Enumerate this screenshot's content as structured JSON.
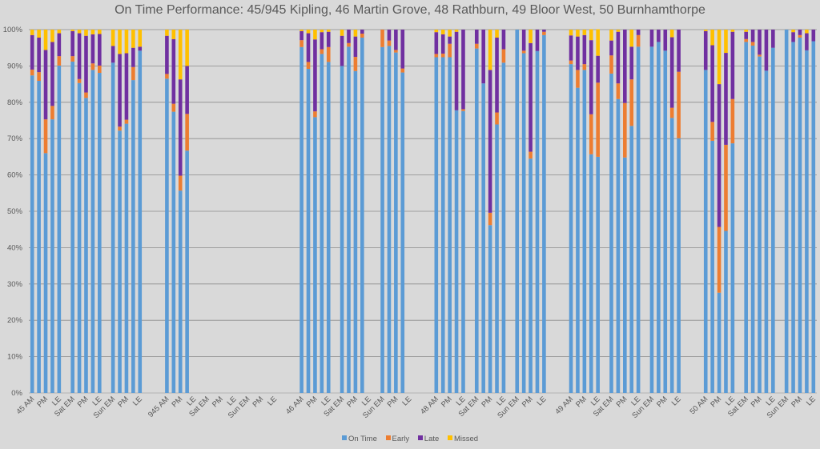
{
  "chart_data": {
    "type": "bar",
    "stacked": true,
    "title": "On Time Performance: 45/945 Kipling, 46 Martin Grove, 48 Rathburn, 49 Bloor West, 50 Burnhamthorpe",
    "xlabel": "",
    "ylabel": "",
    "ylim": [
      0,
      100
    ],
    "yticks": [
      "0%",
      "10%",
      "20%",
      "30%",
      "40%",
      "50%",
      "60%",
      "70%",
      "80%",
      "90%",
      "100%"
    ],
    "grid": true,
    "legend_position": "bottom",
    "series_names": [
      "On Time",
      "Early",
      "Late",
      "Missed"
    ],
    "colors": {
      "On Time": "#5b9bd5",
      "Early": "#ed7d31",
      "Late": "#7030a0",
      "Missed": "#ffc000"
    },
    "routes": [
      {
        "name": "45",
        "groups": [
          {
            "labels": [
              "45 AM",
              "PM",
              "LE"
            ],
            "bars": [
              [
                87.4,
                1.6,
                9.5,
                1.5
              ],
              [
                85.9,
                2.4,
                9.5,
                2.2
              ],
              [
                66.0,
                9.3,
                19.1,
                5.6
              ],
              [
                75.3,
                3.7,
                17.6,
                3.4
              ],
              [
                90.1,
                2.6,
                6.3,
                1.0
              ]
            ]
          },
          {
            "labels": [
              "Sat EM",
              "PM",
              "LE"
            ],
            "bars": [
              [
                91.2,
                1.5,
                6.9,
                0.4
              ],
              [
                85.3,
                1.1,
                12.6,
                1.0
              ],
              [
                81.2,
                1.5,
                15.6,
                1.7
              ],
              [
                88.9,
                1.8,
                8.0,
                1.3
              ],
              [
                88.1,
                2.0,
                8.7,
                1.2
              ]
            ]
          },
          {
            "labels": [
              "Sun EM",
              "PM",
              "LE"
            ],
            "bars": [
              [
                90.9,
                0,
                4.6,
                4.5
              ],
              [
                72.2,
                1.1,
                20.0,
                6.7
              ],
              [
                74.1,
                1.1,
                18.3,
                6.5
              ],
              [
                86.1,
                3.6,
                5.3,
                5.0
              ],
              [
                94.2,
                0,
                1.1,
                4.7
              ]
            ]
          }
        ]
      },
      {
        "name": "945",
        "groups": [
          {
            "labels": [
              "945 AM",
              "PM",
              "LE"
            ],
            "bars": [
              [
                86.5,
                1.3,
                10.5,
                1.7
              ],
              [
                77.4,
                2.2,
                17.8,
                2.6
              ],
              [
                55.7,
                4.1,
                26.5,
                13.7
              ],
              [
                66.7,
                10.1,
                13.2,
                10.0
              ]
            ]
          },
          {
            "labels": [
              "Sat EM",
              "PM",
              "LE"
            ],
            "bars": []
          },
          {
            "labels": [
              "Sun EM",
              "PM",
              "LE"
            ],
            "bars": []
          }
        ]
      },
      {
        "name": "46",
        "groups": [
          {
            "labels": [
              "46 AM",
              "PM",
              "LE"
            ],
            "bars": [
              [
                95.2,
                1.9,
                2.5,
                0.4
              ],
              [
                89.2,
                1.9,
                7.9,
                1.0
              ],
              [
                75.9,
                1.6,
                19.8,
                2.7
              ],
              [
                93.3,
                1.3,
                4.7,
                0.7
              ],
              [
                91.1,
                4.1,
                4.2,
                0.6
              ]
            ]
          },
          {
            "labels": [
              "Sat EM",
              "PM",
              "LE"
            ],
            "bars": [
              [
                90.0,
                0,
                8.3,
                1.7
              ],
              [
                95.3,
                1.0,
                3.7,
                0
              ],
              [
                88.6,
                3.9,
                5.6,
                1.9
              ],
              [
                97.8,
                1.1,
                1.1,
                0
              ]
            ]
          },
          {
            "labels": [
              "Sun EM",
              "PM",
              "LE"
            ],
            "bars": [
              [
                95.2,
                4.8,
                0,
                0
              ],
              [
                95.5,
                1.5,
                3.0,
                0
              ],
              [
                93.7,
                0.7,
                5.6,
                0
              ],
              [
                88.2,
                1.1,
                10.7,
                0
              ]
            ]
          }
        ]
      },
      {
        "name": "48",
        "groups": [
          {
            "labels": [
              "48 AM",
              "PM",
              "LE"
            ],
            "bars": [
              [
                92.4,
                0.9,
                6.0,
                0.7
              ],
              [
                92.4,
                1.0,
                5.3,
                1.3
              ],
              [
                92.4,
                3.7,
                2.0,
                1.9
              ],
              [
                77.8,
                0,
                21.6,
                0.6
              ],
              [
                77.6,
                0.5,
                21.9,
                0
              ]
            ]
          },
          {
            "labels": [
              "Sat EM",
              "PM",
              "LE"
            ],
            "bars": [
              [
                94.8,
                1.3,
                3.9,
                0
              ],
              [
                85.2,
                0,
                14.8,
                0
              ],
              [
                46.2,
                3.4,
                39.3,
                11.1
              ],
              [
                73.9,
                3.3,
                20.6,
                2.2
              ],
              [
                90.9,
                3.7,
                5.4,
                0
              ]
            ]
          },
          {
            "labels": [
              "Sun EM",
              "PM",
              "LE"
            ],
            "bars": [
              [
                100,
                0,
                0,
                0
              ],
              [
                93.5,
                0.7,
                5.8,
                0
              ],
              [
                64.5,
                1.9,
                29.9,
                3.7
              ],
              [
                94.1,
                0,
                5.9,
                0
              ],
              [
                98.5,
                0.9,
                0.6,
                0
              ]
            ]
          }
        ]
      },
      {
        "name": "49",
        "groups": [
          {
            "labels": [
              "49 AM",
              "PM",
              "LE"
            ],
            "bars": [
              [
                90.5,
                1.0,
                6.9,
                1.6
              ],
              [
                84.0,
                4.9,
                9.2,
                1.9
              ],
              [
                88.9,
                1.6,
                8.0,
                1.5
              ],
              [
                65.7,
                11.0,
                20.4,
                3.0
              ],
              [
                65.0,
                20.4,
                7.4,
                7.3
              ]
            ]
          },
          {
            "labels": [
              "Sat EM",
              "PM",
              "LE"
            ],
            "bars": [
              [
                87.9,
                5.0,
                4.1,
                3.0
              ],
              [
                80.9,
                4.3,
                14.2,
                0.6
              ],
              [
                64.8,
                15.0,
                20.2,
                0
              ],
              [
                73.5,
                12.8,
                9.0,
                4.7
              ],
              [
                95.3,
                3.2,
                1.5,
                0
              ]
            ]
          },
          {
            "labels": [
              "Sun EM",
              "PM",
              "LE"
            ],
            "bars": [
              [
                95.3,
                0,
                4.7,
                0
              ],
              [
                96.6,
                0,
                3.4,
                0
              ],
              [
                94.2,
                0,
                5.8,
                0
              ],
              [
                75.7,
                2.8,
                19.4,
                2.1
              ],
              [
                70.1,
                18.3,
                11.6,
                0
              ]
            ]
          }
        ]
      },
      {
        "name": "50",
        "groups": [
          {
            "labels": [
              "50 AM",
              "PM",
              "LE"
            ],
            "bars": [
              [
                88.9,
                0,
                10.7,
                0.4
              ],
              [
                69.4,
                5.2,
                21.1,
                4.3
              ],
              [
                27.6,
                18.1,
                39.3,
                15.0
              ],
              [
                44.6,
                23.7,
                25.3,
                6.4
              ],
              [
                68.7,
                12.2,
                18.5,
                0.6
              ]
            ]
          },
          {
            "labels": [
              "Sat EM",
              "PM",
              "LE"
            ],
            "bars": [
              [
                96.6,
                0.8,
                2.0,
                0.6
              ],
              [
                95.6,
                1.0,
                3.4,
                0
              ],
              [
                92.6,
                0.5,
                6.9,
                0
              ],
              [
                88.7,
                0,
                11.3,
                0
              ],
              [
                95.0,
                0,
                5.0,
                0
              ]
            ]
          },
          {
            "labels": [
              "Sun EM",
              "PM",
              "LE"
            ],
            "bars": [
              [
                100,
                0,
                0,
                0
              ],
              [
                96.6,
                0,
                2.7,
                0.7
              ],
              [
                97.8,
                0.7,
                1.5,
                0
              ],
              [
                94.3,
                0,
                4.7,
                1.0
              ],
              [
                96.8,
                0,
                3.2,
                0
              ]
            ]
          }
        ]
      }
    ]
  }
}
